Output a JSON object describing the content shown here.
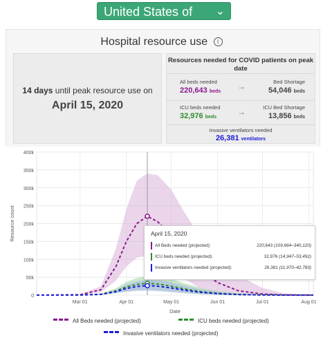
{
  "header": {
    "country": "United States of America"
  },
  "panel": {
    "title": "Hospital resource use",
    "info_icon": "info-icon"
  },
  "peak": {
    "days": "14 days",
    "days_suffix": " until peak resource use on",
    "date": "April 15, 2020"
  },
  "resources": {
    "title": "Resources needed for COVID patients on peak date",
    "all_beds_label": "All beds needed",
    "all_beds_value": "220,643",
    "all_beds_unit": "beds",
    "bed_shortage_label": "Bed Shortage",
    "bed_shortage_value": "54,046",
    "bed_shortage_unit": "beds",
    "icu_label": "ICU beds needed",
    "icu_value": "32,976",
    "icu_unit": "beds",
    "icu_shortage_label": "ICU Bed Shortage",
    "icu_shortage_value": "13,856",
    "icu_shortage_unit": "beds",
    "vent_label": "Invasive ventilators needed",
    "vent_value": "26,381",
    "vent_unit": "ventilators",
    "arrow_icon": "arrow-right-icon"
  },
  "tooltip": {
    "date": "April 15, 2020",
    "rows": [
      {
        "label": "All Beds needed (projected):",
        "value": "220,643",
        "range": "(109,664–340,120)"
      },
      {
        "label": "ICU beds needed (projected):",
        "value": "32,976",
        "range": "(14,947–53,492)"
      },
      {
        "label": "Invasive ventilators needed (projected):",
        "value": "26,381",
        "range": "(11,970–42,783)"
      }
    ]
  },
  "legend": {
    "all_beds": "All Beds needed (projected)",
    "icu": "ICU beds needed (projected)",
    "vent": "Invasive ventilators needed (projected)"
  },
  "colors": {
    "accent": "#3ba776",
    "all_beds": "#8b1a8b",
    "icu": "#2e8b2e",
    "vent": "#1a1ad9",
    "all_beds_band": "#d9b3d9",
    "icu_band": "#a8d8a8",
    "vent_band": "#a8b8e8"
  },
  "chart_data": {
    "type": "line",
    "xlabel": "Date",
    "ylabel": "Resource count",
    "ylim": [
      0,
      400000
    ],
    "yticks": [
      0,
      50000,
      100000,
      150000,
      200000,
      250000,
      300000,
      350000,
      400000
    ],
    "ytick_labels": [
      "0",
      "50k",
      "100k",
      "150k",
      "200k",
      "250k",
      "300k",
      "350k",
      "400k"
    ],
    "xlim": [
      "2020-02-01",
      "2020-08-04"
    ],
    "xticks": [
      "2020-03-01",
      "2020-04-01",
      "2020-05-01",
      "2020-06-01",
      "2020-07-01",
      "2020-08-01"
    ],
    "xtick_labels": [
      "Mar 01",
      "Apr 01",
      "May 01",
      "Jun 01",
      "Jul 01",
      "Aug 01"
    ],
    "highlight_date": "2020-04-15",
    "x": [
      "2020-02-01",
      "2020-03-01",
      "2020-03-15",
      "2020-03-25",
      "2020-04-01",
      "2020-04-08",
      "2020-04-15",
      "2020-04-22",
      "2020-05-01",
      "2020-05-10",
      "2020-05-20",
      "2020-06-01",
      "2020-06-15",
      "2020-07-01",
      "2020-07-15",
      "2020-08-04"
    ],
    "series": [
      {
        "name": "All Beds needed (projected)",
        "values": [
          0,
          1000,
          15000,
          80000,
          150000,
          200000,
          220643,
          205000,
          165000,
          115000,
          70000,
          35000,
          12000,
          3000,
          500,
          0
        ],
        "lower": [
          0,
          500,
          8000,
          40000,
          80000,
          105000,
          109664,
          98000,
          75000,
          45000,
          20000,
          7000,
          2000,
          300,
          0,
          0
        ],
        "upper": [
          0,
          2000,
          25000,
          130000,
          240000,
          320000,
          340120,
          335000,
          295000,
          230000,
          165000,
          105000,
          55000,
          20000,
          5000,
          0
        ]
      },
      {
        "name": "ICU beds needed (projected)",
        "values": [
          0,
          200,
          2500,
          12000,
          23000,
          30000,
          32976,
          31000,
          25000,
          17000,
          10000,
          5000,
          1800,
          400,
          0,
          0
        ],
        "lower": [
          0,
          100,
          1200,
          6000,
          11000,
          14000,
          14947,
          13500,
          10500,
          6500,
          3000,
          1000,
          300,
          0,
          0,
          0
        ],
        "upper": [
          0,
          400,
          4500,
          19000,
          37000,
          48000,
          53492,
          52000,
          45000,
          33000,
          21000,
          11000,
          5000,
          1500,
          300,
          0
        ]
      },
      {
        "name": "Invasive ventilators needed (projected)",
        "values": [
          0,
          150,
          2000,
          9500,
          18500,
          24000,
          26381,
          25000,
          20000,
          13500,
          8000,
          4000,
          1400,
          300,
          0,
          0
        ],
        "lower": [
          0,
          80,
          1000,
          5000,
          9000,
          11500,
          11970,
          11000,
          8500,
          5000,
          2500,
          800,
          200,
          0,
          0,
          0
        ],
        "upper": [
          0,
          300,
          3500,
          15000,
          29500,
          38500,
          42783,
          41500,
          36000,
          26500,
          17000,
          9000,
          4000,
          1200,
          200,
          0
        ]
      }
    ],
    "grid": true,
    "legend": "bottom"
  }
}
